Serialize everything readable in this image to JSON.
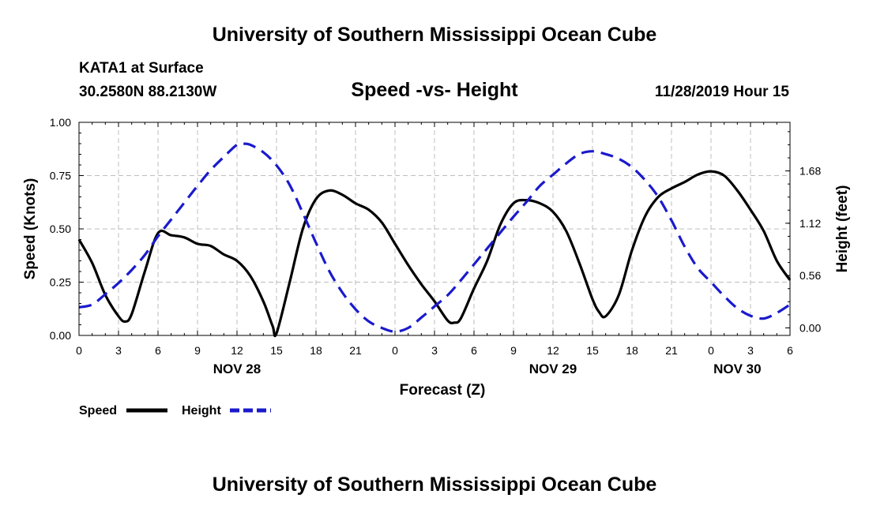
{
  "header": {
    "title": "University of Southern Mississippi Ocean Cube",
    "station": "KATA1 at Surface",
    "coords": "30.2580N 88.2130W",
    "chart_title": "Speed -vs- Height",
    "datetime": "11/28/2019 Hour 15"
  },
  "footer": {
    "title": "University of Southern Mississippi Ocean Cube"
  },
  "colors": {
    "speed": "#000000",
    "height": "#1a1acc",
    "grid": "#bdbdbd"
  },
  "chart_data": {
    "type": "line",
    "title": "Speed -vs- Height",
    "xlabel": "Forecast (Z)",
    "ylabel": "Speed (Knots)",
    "y2label": "Height (feet)",
    "x_range_hours": [
      0,
      54
    ],
    "ylim": [
      0,
      1.0
    ],
    "y2lim": [
      -0.0806,
      2.2
    ],
    "x_ticks": [
      "0",
      "3",
      "6",
      "9",
      "12",
      "15",
      "18",
      "21",
      "0",
      "3",
      "6",
      "9",
      "12",
      "15",
      "18",
      "21",
      "0",
      "3",
      "6"
    ],
    "y_ticks": [
      "0.00",
      "0.25",
      "0.50",
      "0.75",
      "1.00"
    ],
    "y2_ticks": [
      "0.00",
      "0.56",
      "1.12",
      "1.68"
    ],
    "y2_tick_values": [
      0,
      0.56,
      1.12,
      1.68
    ],
    "date_labels": [
      {
        "label": "NOV 28",
        "hour": 12
      },
      {
        "label": "NOV 29",
        "hour": 36
      },
      {
        "label": "NOV 30",
        "hour": 50
      }
    ],
    "legend": [
      "Speed",
      "Height"
    ],
    "series": [
      {
        "name": "Speed",
        "axis": "left",
        "style": "solid",
        "x": [
          0,
          1,
          2,
          3,
          3.5,
          4,
          5,
          6,
          7,
          8,
          9,
          10,
          11,
          12,
          13,
          14,
          14.7,
          15,
          16,
          17,
          18,
          19,
          20,
          21,
          22,
          23,
          24,
          25,
          26,
          27,
          28,
          28.5,
          29,
          30,
          31,
          32,
          33,
          34,
          35,
          36,
          37,
          38,
          39,
          39.5,
          40,
          41,
          42,
          43,
          44,
          45,
          46,
          47,
          48,
          49,
          50,
          51,
          52,
          53,
          54
        ],
        "values": [
          0.45,
          0.34,
          0.19,
          0.09,
          0.065,
          0.1,
          0.3,
          0.48,
          0.47,
          0.46,
          0.43,
          0.42,
          0.38,
          0.35,
          0.28,
          0.16,
          0.045,
          0.01,
          0.25,
          0.5,
          0.64,
          0.68,
          0.66,
          0.62,
          0.59,
          0.53,
          0.43,
          0.33,
          0.24,
          0.16,
          0.07,
          0.06,
          0.08,
          0.22,
          0.35,
          0.52,
          0.62,
          0.635,
          0.62,
          0.58,
          0.49,
          0.34,
          0.17,
          0.11,
          0.09,
          0.19,
          0.4,
          0.56,
          0.65,
          0.69,
          0.72,
          0.755,
          0.77,
          0.75,
          0.68,
          0.59,
          0.49,
          0.35,
          0.26
        ]
      },
      {
        "name": "Height",
        "axis": "right",
        "style": "dashed",
        "x": [
          0,
          1,
          2,
          3,
          4,
          5,
          6,
          7,
          8,
          9,
          10,
          11,
          12,
          12.5,
          13,
          14,
          15,
          16,
          17,
          18,
          19,
          20,
          21,
          22,
          23,
          24,
          25,
          26,
          27,
          28,
          29,
          30,
          31,
          32,
          33,
          34,
          35,
          36,
          37,
          38,
          39,
          40,
          41,
          42,
          43,
          44,
          45,
          46,
          47,
          48,
          49,
          50,
          51,
          52,
          53,
          54
        ],
        "values": [
          0.22,
          0.25,
          0.36,
          0.48,
          0.62,
          0.78,
          0.98,
          1.16,
          1.34,
          1.52,
          1.69,
          1.83,
          1.96,
          1.97,
          1.96,
          1.88,
          1.74,
          1.53,
          1.23,
          0.91,
          0.61,
          0.38,
          0.2,
          0.07,
          0.0,
          -0.04,
          0.0,
          0.11,
          0.23,
          0.35,
          0.51,
          0.68,
          0.85,
          1.02,
          1.19,
          1.35,
          1.52,
          1.64,
          1.76,
          1.86,
          1.89,
          1.86,
          1.81,
          1.72,
          1.58,
          1.4,
          1.15,
          0.87,
          0.64,
          0.49,
          0.34,
          0.21,
          0.13,
          0.1,
          0.16,
          0.25
        ]
      }
    ]
  }
}
